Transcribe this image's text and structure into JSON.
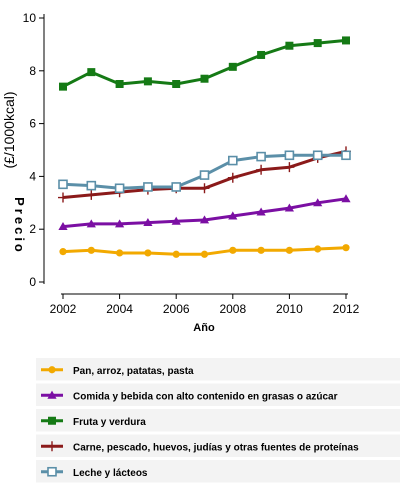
{
  "chart_data": {
    "type": "line",
    "title": "",
    "xlabel": "Año",
    "ylabel": "(£/1000kcal)",
    "ylabel_sub": "Precio",
    "x": [
      2002,
      2003,
      2004,
      2005,
      2006,
      2007,
      2008,
      2009,
      2010,
      2011,
      2012
    ],
    "xticks": [
      "2002",
      "2004",
      "2006",
      "2008",
      "2010",
      "2012"
    ],
    "yticks": [
      "0",
      "2",
      "4",
      "6",
      "8",
      "10"
    ],
    "xlim": [
      2002,
      2012
    ],
    "ylim": [
      0,
      10
    ],
    "grid": false,
    "legend_position": "bottom",
    "series": [
      {
        "name": "Pan, arroz, patatas, pasta",
        "color": "#f2a900",
        "marker": "circle",
        "values": [
          1.15,
          1.2,
          1.1,
          1.1,
          1.05,
          1.05,
          1.2,
          1.2,
          1.2,
          1.25,
          1.3
        ]
      },
      {
        "name": "Comida y bebida con alto contenido en grasas o azúcar",
        "color": "#7b0fa3",
        "marker": "triangle",
        "values": [
          2.1,
          2.2,
          2.2,
          2.25,
          2.3,
          2.35,
          2.5,
          2.65,
          2.8,
          3.0,
          3.15
        ]
      },
      {
        "name": "Fruta y verdura",
        "color": "#157a15",
        "marker": "square",
        "values": [
          7.4,
          7.95,
          7.5,
          7.6,
          7.5,
          7.7,
          8.15,
          8.6,
          8.95,
          9.05,
          9.15
        ]
      },
      {
        "name": "Carne, pescado, huevos, judías y otras fuentes de proteínas",
        "color": "#8b1a1a",
        "marker": "plus",
        "values": [
          3.2,
          3.3,
          3.4,
          3.5,
          3.55,
          3.55,
          3.95,
          4.25,
          4.35,
          4.7,
          4.95
        ]
      },
      {
        "name": "Leche y lácteos",
        "color": "#5b8fa8",
        "marker": "square-open",
        "values": [
          3.7,
          3.65,
          3.55,
          3.6,
          3.6,
          4.05,
          4.6,
          4.75,
          4.8,
          4.8,
          4.8
        ]
      }
    ]
  }
}
